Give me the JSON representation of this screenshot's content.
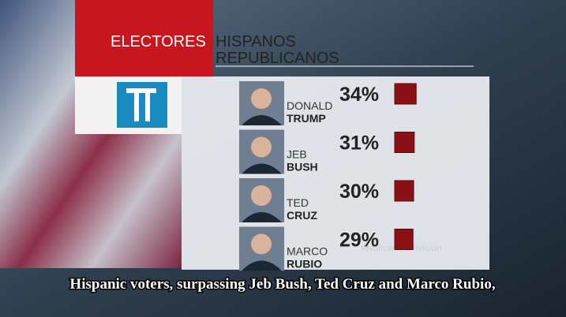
{
  "chart_data": {
    "type": "bar",
    "title": {
      "highlight": "ELECTORES",
      "line1": "HISPANOS",
      "line2": "REPUBLICANOS"
    },
    "categories": [
      {
        "first": "DONALD",
        "last": "TRUMP"
      },
      {
        "first": "JEB",
        "last": "BUSH"
      },
      {
        "first": "TED",
        "last": "CRUZ"
      },
      {
        "first": "MARCO",
        "last": "RUBIO"
      }
    ],
    "values": [
      34,
      31,
      30,
      29
    ],
    "value_labels": [
      "34%",
      "31%",
      "30%",
      "29%"
    ],
    "color": "#8b1016",
    "hashtag": "#NoticieroUnivision",
    "caption": "Hispanic voters, surpassing Jeb Bush, Ted Cruz and Marco Rubio,"
  }
}
